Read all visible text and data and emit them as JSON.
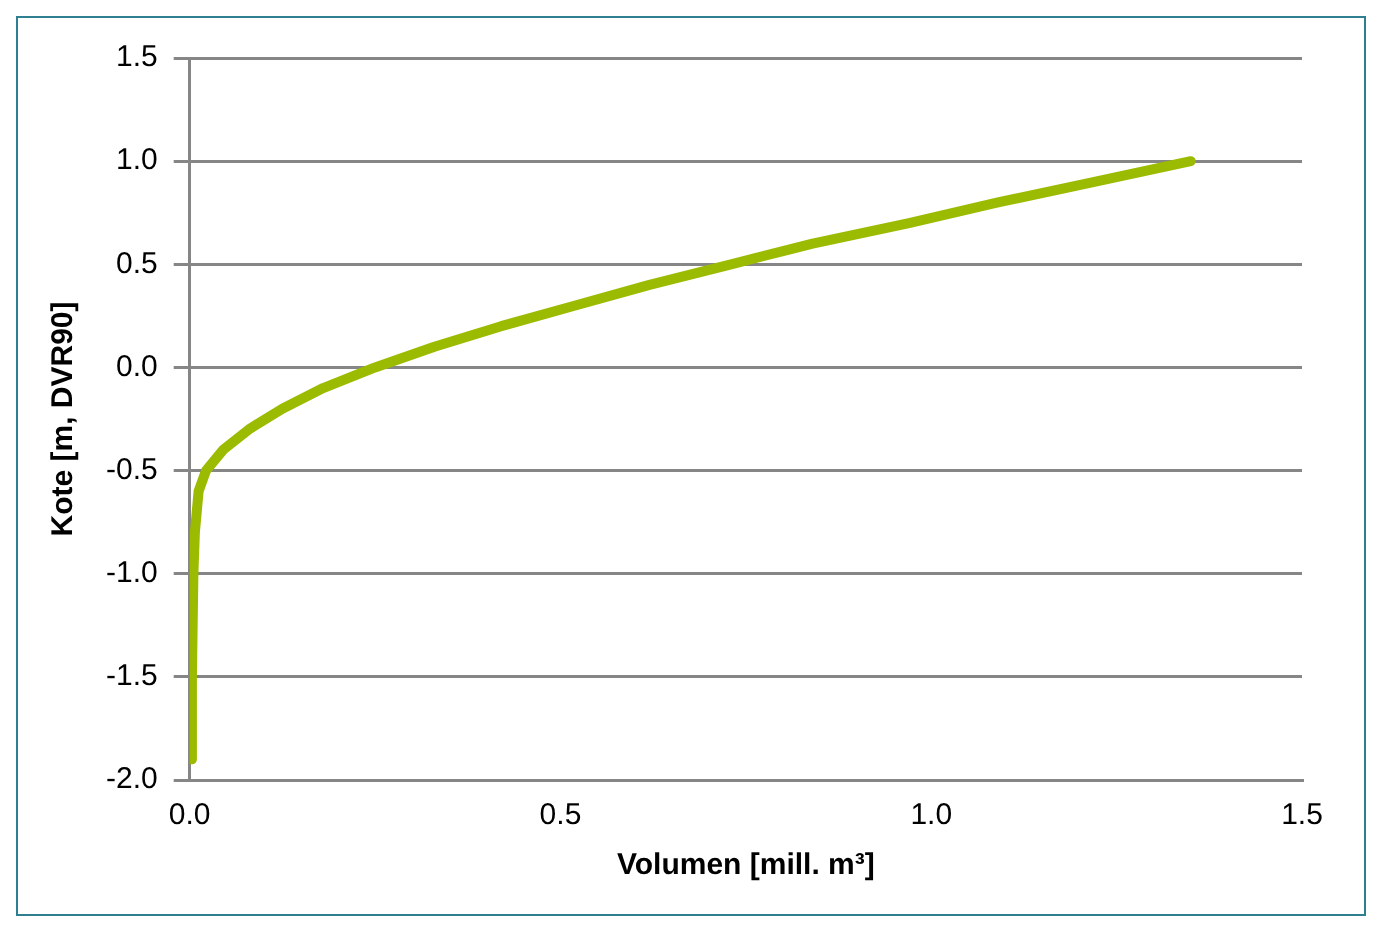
{
  "chart_data": {
    "type": "line",
    "xlabel": "Volumen [mill. m³]",
    "ylabel": "Kote [m, DVR90]",
    "series": [
      {
        "color": "#9bbb00",
        "x": [
          0.002,
          0.003,
          0.005,
          0.007,
          0.012,
          0.022,
          0.045,
          0.08,
          0.125,
          0.18,
          0.25,
          0.33,
          0.42,
          0.52,
          0.62,
          0.73,
          0.84,
          0.97,
          1.09,
          1.22,
          1.35
        ],
        "values": [
          -1.9,
          -1.5,
          -1.0,
          -0.8,
          -0.6,
          -0.5,
          -0.4,
          -0.3,
          -0.2,
          -0.1,
          0.0,
          0.1,
          0.2,
          0.3,
          0.4,
          0.5,
          0.6,
          0.7,
          0.8,
          0.9,
          1.0
        ]
      }
    ],
    "xlim": [
      0,
      1.5
    ],
    "xticks": [
      {
        "value": 0,
        "label": "0.0"
      },
      0.5,
      {
        "value": 1,
        "label": "1.0"
      },
      1.5
    ],
    "ylim": [
      -2,
      1.5
    ],
    "yticks": [
      {
        "value": -2,
        "label": "-2.0"
      },
      -1.5,
      {
        "value": -1,
        "label": "-1.0"
      },
      -0.5,
      {
        "value": 0,
        "label": "0.0"
      },
      0.5,
      {
        "value": 1,
        "label": "1.0"
      },
      1.5
    ],
    "grid": "y",
    "legend": false,
    "marker": "none",
    "line_style": "solid"
  }
}
